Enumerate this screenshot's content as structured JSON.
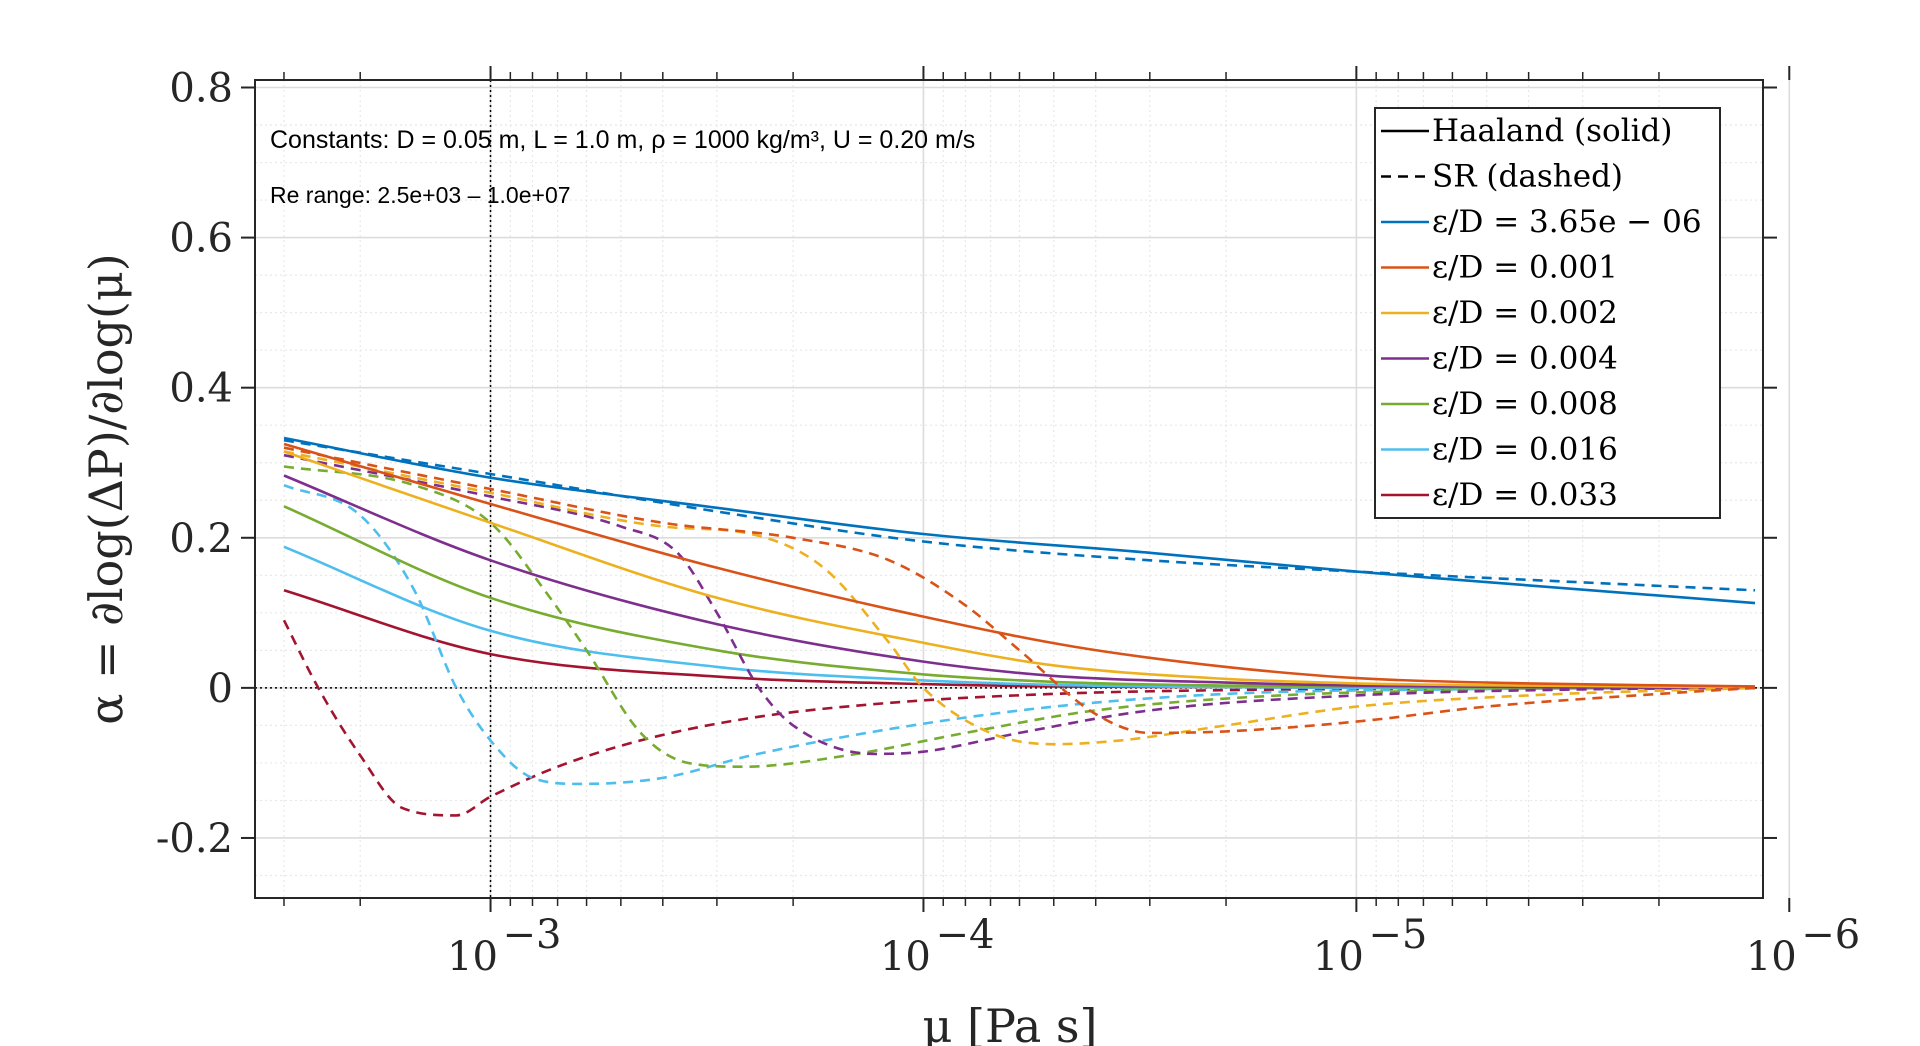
{
  "chart_data": {
    "type": "line",
    "x_scale": "log",
    "x_reversed": true,
    "xlim": [
      0.0035,
      1.15e-06
    ],
    "ylim": [
      -0.28,
      0.81
    ],
    "xlabel": "μ [Pa s]",
    "ylabel": "α = ∂log(ΔP)/∂log(μ)",
    "x_ticks": [
      {
        "value": 0.001,
        "base": "10",
        "exp": "−3"
      },
      {
        "value": 0.0001,
        "base": "10",
        "exp": "−4"
      },
      {
        "value": 1e-05,
        "base": "10",
        "exp": "−5"
      },
      {
        "value": 1e-06,
        "base": "10",
        "exp": "−6"
      }
    ],
    "y_ticks": [
      {
        "value": 0.8,
        "label": "0.8"
      },
      {
        "value": 0.6,
        "label": "0.6"
      },
      {
        "value": 0.4,
        "label": "0.4"
      },
      {
        "value": 0.2,
        "label": "0.2"
      },
      {
        "value": 0,
        "label": "0"
      },
      {
        "value": -0.2,
        "label": "-0.2"
      }
    ],
    "grid": true,
    "ref_lines": {
      "x": 0.001,
      "y": 0
    },
    "annotations": {
      "constants": "Constants:  D = 0.05 m,  L = 1.0 m,  ρ = 1000 kg/m³, U = 0.20 m/s",
      "re_range": "Re range: 2.5e+03 – 1.0e+07"
    },
    "legend": {
      "placement": "top-right",
      "style_entries": [
        {
          "label": "Haaland (solid)",
          "dash": "solid"
        },
        {
          "label": "SR (dashed)",
          "dash": "dashed"
        }
      ]
    },
    "series": [
      {
        "name": "ε/D = 3.65e − 06",
        "color": "#0072BD",
        "haaland": {
          "x": [
            0.003,
            0.001,
            0.0003,
            0.0001,
            3e-05,
            1e-05,
            1.2e-06
          ],
          "y": [
            0.333,
            0.28,
            0.24,
            0.205,
            0.18,
            0.155,
            0.113
          ]
        },
        "sr": {
          "x": [
            0.003,
            0.001,
            0.0003,
            0.0001,
            3e-05,
            1e-05,
            1.2e-06
          ],
          "y": [
            0.33,
            0.285,
            0.235,
            0.195,
            0.17,
            0.155,
            0.13
          ]
        }
      },
      {
        "name": "ε/D = 0.001",
        "color": "#D95319",
        "haaland": {
          "x": [
            0.003,
            0.001,
            0.0003,
            0.0001,
            4.5e-05,
            2e-05,
            1e-05,
            4e-06,
            1.2e-06
          ],
          "y": [
            0.325,
            0.245,
            0.16,
            0.095,
            0.055,
            0.028,
            0.013,
            0.006,
            0.002
          ]
        },
        "sr": {
          "x": [
            0.003,
            0.001,
            0.0004,
            0.0002,
            0.00012,
            8e-05,
            6e-05,
            4e-05,
            3e-05,
            2e-05,
            1e-05,
            5e-06,
            2e-06,
            1.2e-06
          ],
          "y": [
            0.32,
            0.265,
            0.22,
            0.2,
            0.17,
            0.11,
            0.05,
            -0.035,
            -0.06,
            -0.058,
            -0.045,
            -0.025,
            -0.008,
            0.0
          ]
        }
      },
      {
        "name": "ε/D = 0.002",
        "color": "#EDB120",
        "haaland": {
          "x": [
            0.003,
            0.001,
            0.0003,
            0.0001,
            5e-05,
            2e-05,
            1e-05,
            4e-06,
            1.2e-06
          ],
          "y": [
            0.315,
            0.22,
            0.12,
            0.06,
            0.03,
            0.012,
            0.006,
            0.003,
            0.001
          ]
        },
        "sr": {
          "x": [
            0.003,
            0.001,
            0.0004,
            0.00025,
            0.00017,
            0.00012,
            0.0001,
            7e-05,
            5e-05,
            3.5e-05,
            2e-05,
            1e-05,
            4e-06,
            1.2e-06
          ],
          "y": [
            0.315,
            0.26,
            0.215,
            0.205,
            0.16,
            0.06,
            0.0,
            -0.06,
            -0.075,
            -0.07,
            -0.05,
            -0.025,
            -0.01,
            0.0
          ]
        }
      },
      {
        "name": "ε/D = 0.004",
        "color": "#7E2F8E",
        "haaland": {
          "x": [
            0.003,
            0.001,
            0.0003,
            0.0001,
            5e-05,
            2e-05,
            1e-05,
            4e-06,
            1.2e-06
          ],
          "y": [
            0.283,
            0.17,
            0.085,
            0.035,
            0.016,
            0.007,
            0.003,
            0.001,
            0.0
          ]
        },
        "sr": {
          "x": [
            0.003,
            0.001,
            0.0005,
            0.00037,
            0.0003,
            0.00024,
            0.0002,
            0.00013,
            0.0001,
            6e-05,
            3e-05,
            1e-05,
            3e-06,
            1.2e-06
          ],
          "y": [
            0.31,
            0.255,
            0.215,
            0.18,
            0.1,
            0.0,
            -0.05,
            -0.088,
            -0.085,
            -0.06,
            -0.03,
            -0.01,
            -0.002,
            0.0
          ]
        }
      },
      {
        "name": "ε/D = 0.008",
        "color": "#77AC30",
        "haaland": {
          "x": [
            0.003,
            0.001,
            0.0003,
            0.0001,
            5e-05,
            2e-05,
            8e-06,
            3e-06,
            1.2e-06
          ],
          "y": [
            0.242,
            0.12,
            0.05,
            0.018,
            0.008,
            0.003,
            0.001,
            0.0,
            0.0
          ]
        },
        "sr": {
          "x": [
            0.003,
            0.0015,
            0.001,
            0.00075,
            0.0006,
            0.00045,
            0.00035,
            0.00026,
            0.00015,
            8e-05,
            4e-05,
            1.5e-05,
            5e-06,
            1.2e-06
          ],
          "y": [
            0.295,
            0.27,
            0.22,
            0.13,
            0.05,
            -0.06,
            -0.1,
            -0.105,
            -0.09,
            -0.06,
            -0.03,
            -0.01,
            -0.003,
            0.0
          ]
        }
      },
      {
        "name": "ε/D = 0.016",
        "color": "#4DBEEE",
        "haaland": {
          "x": [
            0.003,
            0.001,
            0.0003,
            0.0001,
            5e-05,
            2e-05,
            8e-06,
            3e-06,
            1.2e-06
          ],
          "y": [
            0.188,
            0.076,
            0.028,
            0.01,
            0.004,
            0.001,
            0.0,
            0.0,
            0.0
          ]
        },
        "sr": {
          "x": [
            0.003,
            0.002,
            0.0015,
            0.0012,
            0.001,
            0.0008,
            0.00062,
            0.0004,
            0.00025,
            0.00012,
            5e-05,
            2e-05,
            6e-06,
            1.2e-06
          ],
          "y": [
            0.27,
            0.23,
            0.13,
            0.0,
            -0.07,
            -0.12,
            -0.128,
            -0.12,
            -0.09,
            -0.055,
            -0.025,
            -0.008,
            -0.002,
            0.0
          ]
        }
      },
      {
        "name": "ε/D = 0.033",
        "color": "#A2142F",
        "haaland": {
          "x": [
            0.003,
            0.001,
            0.0003,
            0.0001,
            5e-05,
            2e-05,
            8e-06,
            3e-06,
            1.2e-06
          ],
          "y": [
            0.13,
            0.045,
            0.015,
            0.005,
            0.002,
            0.001,
            0.0,
            0.0,
            0.0
          ]
        },
        "sr": {
          "x": [
            0.003,
            0.0025,
            0.002,
            0.0016,
            0.0012,
            0.001,
            0.0007,
            0.00045,
            0.00025,
            0.00012,
            5e-05,
            2e-05,
            6e-06,
            1.2e-06
          ],
          "y": [
            0.09,
            0.0,
            -0.09,
            -0.16,
            -0.17,
            -0.145,
            -0.105,
            -0.07,
            -0.04,
            -0.02,
            -0.008,
            -0.003,
            -0.001,
            0.0
          ]
        }
      }
    ]
  }
}
